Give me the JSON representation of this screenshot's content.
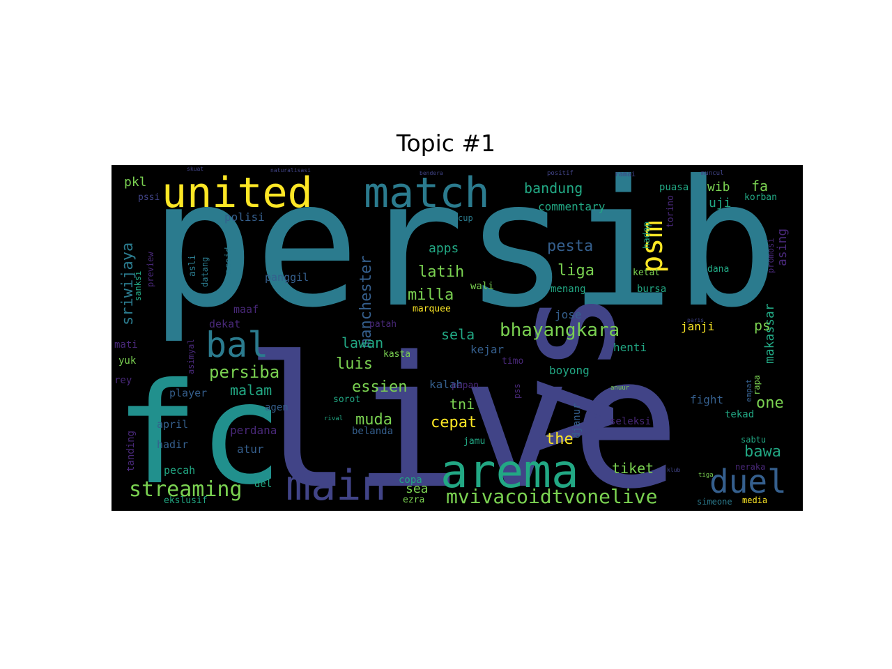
{
  "title": "Topic #1",
  "colors": {
    "background": "#000000",
    "teal": "#2b7b8e",
    "indigo": "#414487",
    "green": "#22a884",
    "lime": "#7ad151",
    "yellow": "#fde725",
    "purple": "#482878",
    "blue": "#355f8d"
  },
  "words": [
    "persib",
    "live",
    "fc",
    "vs",
    "united",
    "match",
    "arema",
    "main",
    "duel",
    "bal",
    "psm",
    "mvivacoidtvonelive",
    "streaming",
    "bhayangkara",
    "persiba",
    "manchester",
    "sriwijaya",
    "essien",
    "luis",
    "lawan",
    "muda",
    "cepat",
    "the",
    "one",
    "bawa",
    "liga",
    "pesta",
    "latih",
    "milla",
    "bandung",
    "wib",
    "uji",
    "fa",
    "asing",
    "makassar",
    "tiket",
    "sela",
    "tni",
    "malam",
    "commentary",
    "polisi",
    "apps",
    "sea",
    "copa",
    "belanda",
    "djanur",
    "boyong",
    "kejar",
    "kalah",
    "jose",
    "ps",
    "janji",
    "henti",
    "fight",
    "tekad",
    "seleksi",
    "perdana",
    "atur",
    "hadir",
    "april",
    "tanding",
    "pecah",
    "player",
    "agen",
    "rey",
    "mati",
    "yuk",
    "maaf",
    "dekat",
    "vivacoid",
    "asli",
    "datang",
    "panggil",
    "sanksi",
    "preview",
    "pkl",
    "pssi",
    "puasa",
    "korban",
    "dana",
    "ketat",
    "bursa",
    "menang",
    "hadap",
    "torino",
    "promosi",
    "sabtu",
    "rapa",
    "empat",
    "neraka",
    "media",
    "simeone",
    "del",
    "ekslusif",
    "ezra",
    "jamu",
    "papan",
    "patah",
    "sorot",
    "kasta",
    "timo",
    "marquee",
    "wali",
    "cup",
    "pss",
    "anuur",
    "rival",
    "tiga",
    "ramai",
    "muncul",
    "positif",
    "bendera",
    "naturalisasi",
    "skuat",
    "asimyal",
    "klub",
    "paris"
  ]
}
